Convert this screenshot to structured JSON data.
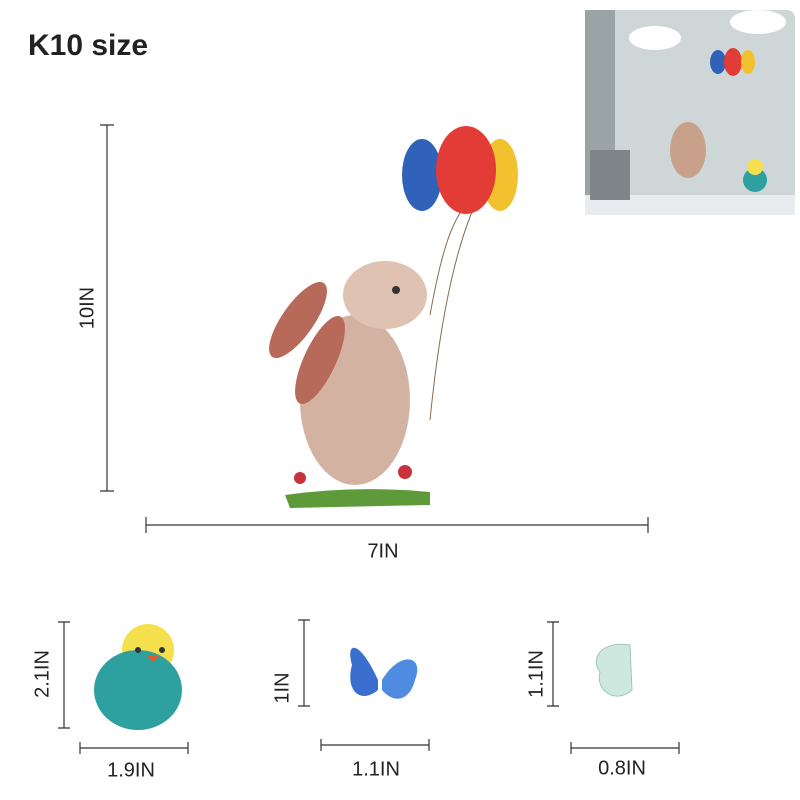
{
  "title": "K10 size",
  "main": {
    "height": "10IN",
    "width": "7IN"
  },
  "items": [
    {
      "height": "2.1IN",
      "width": "1.9IN"
    },
    {
      "height": "1IN",
      "width": "1.1IN"
    },
    {
      "height": "1.1IN",
      "width": "0.8IN"
    }
  ]
}
